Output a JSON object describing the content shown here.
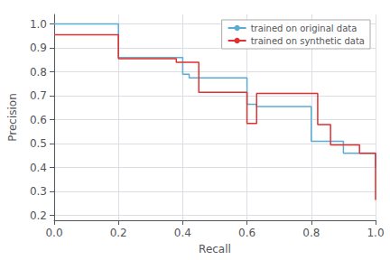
{
  "chart_data": {
    "type": "line",
    "xlabel": "Recall",
    "ylabel": "Precision",
    "series": [
      {
        "name": "trained on original data",
        "color": "#5bacd4",
        "x": [
          0.0,
          0.2,
          0.2,
          0.4,
          0.4,
          0.42,
          0.42,
          0.6,
          0.6,
          0.63,
          0.63,
          0.8,
          0.8,
          0.9,
          0.9,
          1.0,
          1.0
        ],
        "values": [
          1.0,
          1.0,
          0.86,
          0.86,
          0.79,
          0.79,
          0.775,
          0.775,
          0.665,
          0.665,
          0.655,
          0.655,
          0.51,
          0.51,
          0.46,
          0.46,
          0.4
        ]
      },
      {
        "name": "trained on synthetic data",
        "color": "#e03030",
        "x": [
          0.0,
          0.2,
          0.2,
          0.38,
          0.38,
          0.45,
          0.45,
          0.6,
          0.6,
          0.63,
          0.63,
          0.82,
          0.82,
          0.86,
          0.86,
          0.95,
          0.95,
          1.0,
          1.0
        ],
        "values": [
          0.955,
          0.955,
          0.855,
          0.855,
          0.84,
          0.84,
          0.715,
          0.715,
          0.585,
          0.585,
          0.71,
          0.71,
          0.58,
          0.58,
          0.495,
          0.495,
          0.46,
          0.46,
          0.265
        ]
      }
    ],
    "xlim": [
      0.0,
      1.0
    ],
    "ylim": [
      0.18,
      1.04
    ],
    "xticks": [
      {
        "value": 0,
        "label": "0.0"
      },
      0.2,
      0.4,
      0.6,
      0.8,
      {
        "value": 1,
        "label": "1.0"
      }
    ],
    "yticks": [
      0.2,
      0.3,
      0.4,
      0.5,
      0.6,
      0.7,
      0.8,
      0.9,
      {
        "value": 1,
        "label": "1.0"
      }
    ],
    "grid": true,
    "legend": "upper right"
  }
}
